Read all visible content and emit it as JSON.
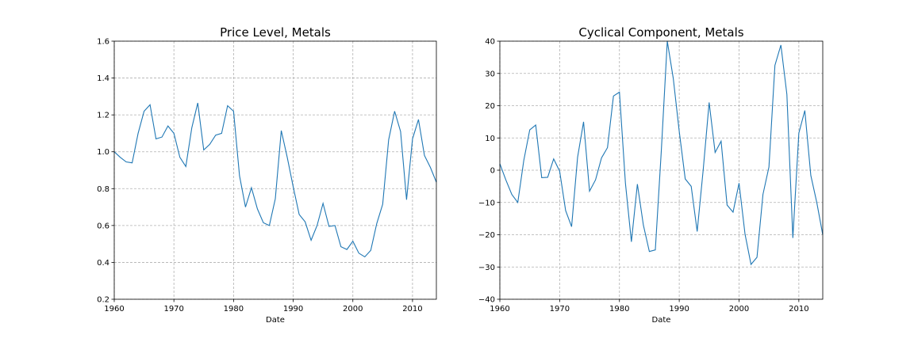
{
  "chart_data": [
    {
      "type": "line",
      "title": "Price Level, Metals",
      "xlabel": "Date",
      "ylabel": "",
      "xlim": [
        1960,
        2014
      ],
      "ylim": [
        0.2,
        1.6
      ],
      "xticks": [
        1960,
        1970,
        1980,
        1990,
        2000,
        2010
      ],
      "xtick_labels": [
        "1960",
        "1970",
        "1980",
        "1990",
        "2000",
        "2010"
      ],
      "yticks": [
        0.2,
        0.4,
        0.6,
        0.8,
        1.0,
        1.2,
        1.4,
        1.6
      ],
      "ytick_labels": [
        "0.2",
        "0.4",
        "0.6",
        "0.8",
        "1.0",
        "1.2",
        "1.4",
        "1.6"
      ],
      "grid": true,
      "color": "#1f77b4",
      "series": [
        {
          "x": [
            1960,
            1961,
            1962,
            1963,
            1964,
            1965,
            1966,
            1967,
            1968,
            1969,
            1970,
            1971,
            1972,
            1973,
            1974,
            1975,
            1976,
            1977,
            1978,
            1979,
            1980,
            1981,
            1982,
            1983,
            1984,
            1985,
            1986,
            1987,
            1988,
            1989,
            1990,
            1991,
            1992,
            1993,
            1994,
            1995,
            1996,
            1997,
            1998,
            1999,
            2000,
            2001,
            2002,
            2003,
            2004,
            2005,
            2006,
            2007,
            2008,
            2009,
            2010,
            2011,
            2012,
            2013,
            2014
          ],
          "values": [
            1.0,
            0.97,
            0.945,
            0.94,
            1.1,
            1.22,
            1.255,
            1.07,
            1.08,
            1.14,
            1.1,
            0.97,
            0.92,
            1.13,
            1.265,
            1.01,
            1.04,
            1.09,
            1.1,
            1.25,
            1.22,
            0.87,
            0.7,
            0.805,
            0.69,
            0.615,
            0.6,
            0.745,
            1.115,
            0.97,
            0.81,
            0.66,
            0.62,
            0.52,
            0.6,
            0.72,
            0.595,
            0.6,
            0.485,
            0.47,
            0.515,
            0.45,
            0.43,
            0.465,
            0.61,
            0.715,
            1.065,
            1.22,
            1.11,
            0.74,
            1.07,
            1.175,
            0.98,
            0.915,
            0.835
          ]
        }
      ]
    },
    {
      "type": "line",
      "title": "Cyclical Component, Metals",
      "xlabel": "Date",
      "ylabel": "",
      "xlim": [
        1960,
        2014
      ],
      "ylim": [
        -40,
        40
      ],
      "xticks": [
        1960,
        1970,
        1980,
        1990,
        2000,
        2010
      ],
      "xtick_labels": [
        "1960",
        "1970",
        "1980",
        "1990",
        "2000",
        "2010"
      ],
      "yticks": [
        -40,
        -30,
        -20,
        -10,
        0,
        10,
        20,
        30,
        40
      ],
      "ytick_labels": [
        "−40",
        "−30",
        "−20",
        "−10",
        "0",
        "10",
        "20",
        "30",
        "40"
      ],
      "grid": true,
      "color": "#1f77b4",
      "series": [
        {
          "x": [
            1960,
            1961,
            1962,
            1963,
            1964,
            1965,
            1966,
            1967,
            1968,
            1969,
            1970,
            1971,
            1972,
            1973,
            1974,
            1975,
            1976,
            1977,
            1978,
            1979,
            1980,
            1981,
            1982,
            1983,
            1984,
            1985,
            1986,
            1987,
            1988,
            1989,
            1990,
            1991,
            1992,
            1993,
            1994,
            1995,
            1996,
            1997,
            1998,
            1999,
            2000,
            2001,
            2002,
            2003,
            2004,
            2005,
            2006,
            2007,
            2008,
            2009,
            2010,
            2011,
            2012,
            2013,
            2014
          ],
          "values": [
            2,
            -3,
            -7.5,
            -10,
            3,
            12.5,
            14,
            -2.3,
            -2.2,
            3.5,
            -0.3,
            -12.5,
            -17.5,
            4,
            15,
            -6.5,
            -3,
            3.8,
            7,
            23,
            24.2,
            -4,
            -22.2,
            -4.3,
            -17,
            -25.2,
            -24.7,
            6,
            40,
            28.5,
            12,
            -2.7,
            -5,
            -19,
            0,
            21,
            5.5,
            9,
            -10.8,
            -13,
            -4,
            -19.8,
            -29.2,
            -27,
            -7.5,
            1,
            32.5,
            38.8,
            23.5,
            -21,
            11.5,
            18.5,
            -1.6,
            -10,
            -20
          ]
        }
      ]
    }
  ]
}
